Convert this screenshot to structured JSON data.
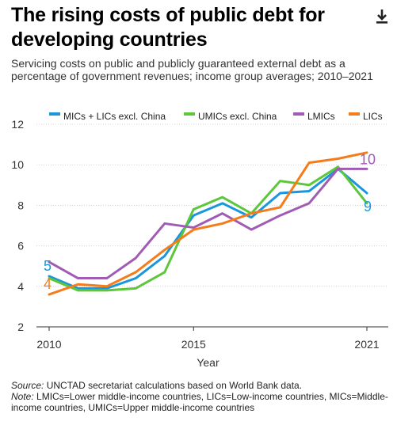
{
  "header": {
    "title": "The rising costs of public debt for developing countries",
    "subtitle": "Servicing costs on public and publicly guaranteed external debt as a percentage of government revenues; income group averages; 2010–2021"
  },
  "icons": {
    "download": "download-icon"
  },
  "footer": {
    "source_label": "Source:",
    "source_text": " UNCTAD secretariat calculations based on World Bank data.",
    "note_label": "Note:",
    "note_text": " LMICs=Lower middle-income countries, LICs=Low-income countries, MICs=Middle-income countries, UMICs=Upper middle-income countries"
  },
  "chart_data": {
    "type": "line",
    "xlabel": "Year",
    "ylabel": "",
    "xlim": [
      2010,
      2021
    ],
    "ylim": [
      2,
      12
    ],
    "xticks": [
      "2010",
      "2015",
      "2021"
    ],
    "yticks": [
      "2",
      "4",
      "6",
      "8",
      "10",
      "12"
    ],
    "grid": true,
    "legend_position": "top",
    "x": [
      2010,
      2011,
      2012,
      2013,
      2014,
      2015,
      2016,
      2017,
      2018,
      2019,
      2020,
      2021
    ],
    "series": [
      {
        "name": "MICs + LICs excl. China",
        "color": "#1a97dc",
        "values": [
          4.5,
          3.9,
          3.9,
          4.4,
          5.5,
          7.5,
          8.1,
          7.4,
          8.6,
          8.7,
          9.8,
          8.6
        ],
        "end_label": "9",
        "start_label": "5"
      },
      {
        "name": "UMICs excl. China",
        "color": "#5cc73a",
        "values": [
          4.4,
          3.8,
          3.8,
          3.9,
          4.7,
          7.8,
          8.4,
          7.6,
          9.2,
          9.0,
          9.9,
          8.1
        ],
        "end_label": "",
        "start_label": ""
      },
      {
        "name": "LMICs",
        "color": "#a05bb5",
        "values": [
          5.2,
          4.4,
          4.4,
          5.4,
          7.1,
          6.9,
          7.6,
          6.8,
          7.5,
          8.1,
          9.8,
          9.8
        ],
        "end_label": "10",
        "start_label": ""
      },
      {
        "name": "LICs",
        "color": "#f57c1a",
        "values": [
          3.6,
          4.1,
          4.0,
          4.7,
          5.8,
          6.8,
          7.1,
          7.6,
          7.9,
          10.1,
          10.3,
          10.6
        ],
        "end_label": "",
        "start_label": "4"
      }
    ]
  }
}
